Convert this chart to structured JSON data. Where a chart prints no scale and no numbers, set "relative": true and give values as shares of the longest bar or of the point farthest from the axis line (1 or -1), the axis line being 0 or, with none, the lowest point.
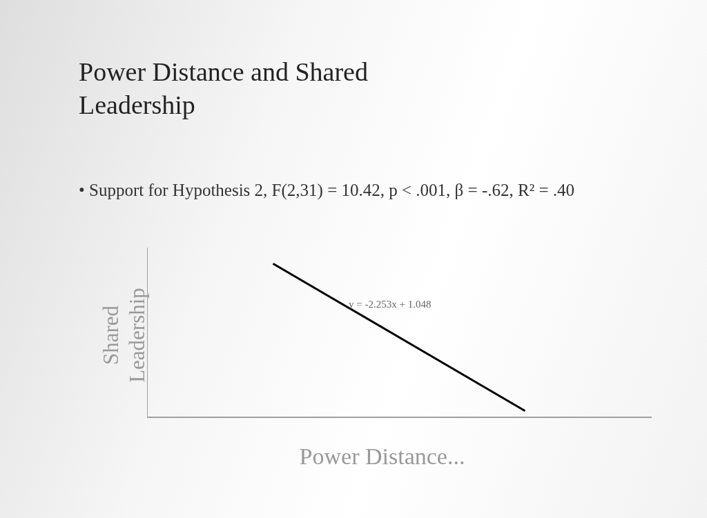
{
  "chart_data": {
    "type": "line",
    "title": "Power Distance and Shared Leadership",
    "subtitle": "• Support for Hypothesis 2, F(2,31) = 10.42, p < .001, β = -.62, R² = .40",
    "xlabel": "Power Distance...",
    "ylabel": "Shared Leadership",
    "annotations": [
      "y = -2.253x + 1.048"
    ],
    "relative": true,
    "categories": [
      null,
      null
    ],
    "series": [
      {
        "color": "#000000",
        "values": [
          1,
          0.04
        ]
      }
    ],
    "grid": false,
    "legend": false,
    "marker": "none",
    "line_style": "solid"
  }
}
